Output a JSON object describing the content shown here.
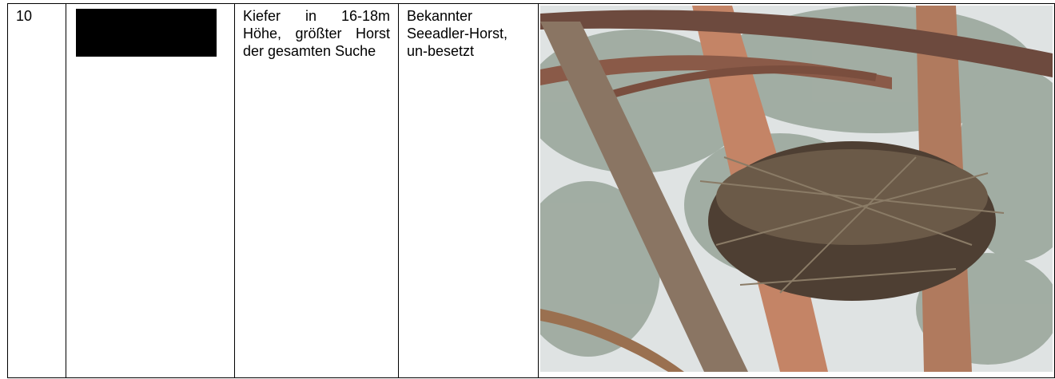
{
  "table": {
    "rows": [
      {
        "number": "10",
        "description": "Kiefer in 16-18m Höhe, größter Horst der gesamten Suche",
        "remark": "Bekannter Seeadler-Horst, un-besetzt"
      }
    ]
  }
}
